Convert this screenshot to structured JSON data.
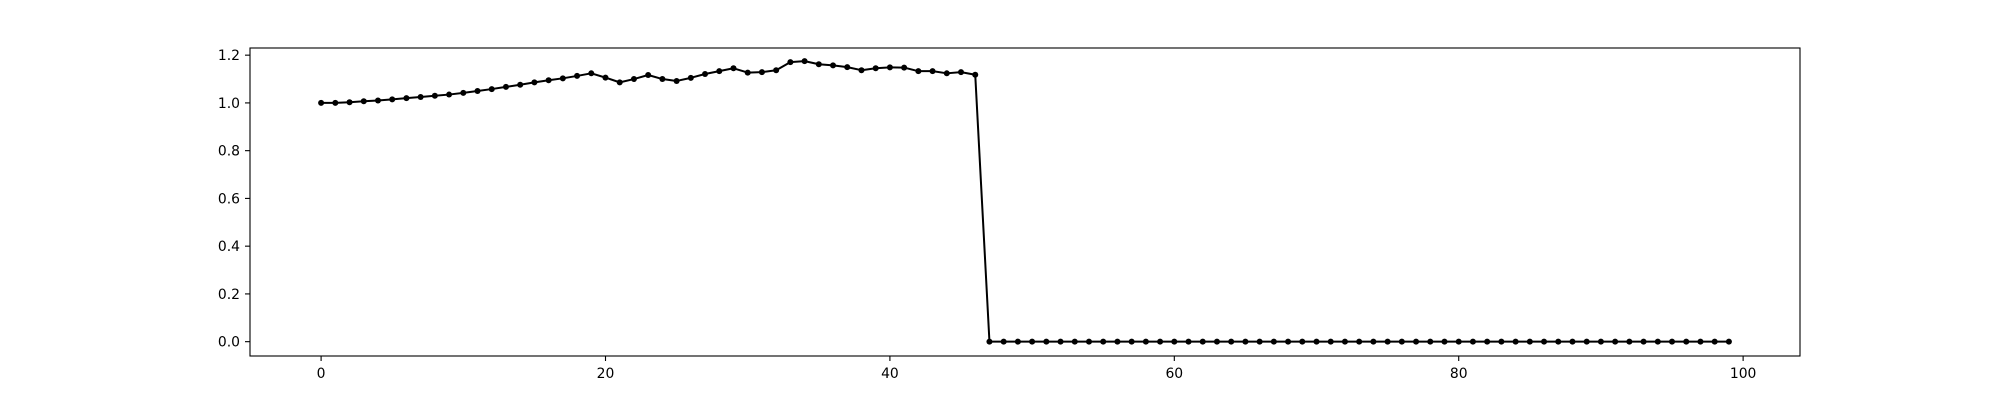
{
  "chart_data": {
    "type": "line",
    "title": "",
    "xlabel": "",
    "ylabel": "",
    "xlim": [
      -5,
      104
    ],
    "ylim": [
      -0.06,
      1.23
    ],
    "x_ticks": [
      0,
      20,
      40,
      60,
      80,
      100
    ],
    "x_tick_labels": [
      "0",
      "20",
      "40",
      "60",
      "80",
      "100"
    ],
    "y_ticks": [
      0.0,
      0.2,
      0.4,
      0.6,
      0.8,
      1.0,
      1.2
    ],
    "y_tick_labels": [
      "0.0",
      "0.2",
      "0.4",
      "0.6",
      "0.8",
      "1.0",
      "1.2"
    ],
    "grid": false,
    "legend": "none",
    "line_color": "#000000",
    "marker": "circle",
    "series": [
      {
        "x": [
          0,
          1,
          2,
          3,
          4,
          5,
          6,
          7,
          8,
          9,
          10,
          11,
          12,
          13,
          14,
          15,
          16,
          17,
          18,
          19,
          20,
          21,
          22,
          23,
          24,
          25,
          26,
          27,
          28,
          29,
          30,
          31,
          32,
          33,
          34,
          35,
          36,
          37,
          38,
          39,
          40,
          41,
          42,
          43,
          44,
          45,
          46,
          47,
          48,
          49,
          50,
          51,
          52,
          53,
          54,
          55,
          56,
          57,
          58,
          59,
          60,
          61,
          62,
          63,
          64,
          65,
          66,
          67,
          68,
          69,
          70,
          71,
          72,
          73,
          74,
          75,
          76,
          77,
          78,
          79,
          80,
          81,
          82,
          83,
          84,
          85,
          86,
          87,
          88,
          89,
          90,
          91,
          92,
          93,
          94,
          95,
          96,
          97,
          98,
          99
        ],
        "values": [
          1.0,
          1.0,
          1.003,
          1.007,
          1.01,
          1.015,
          1.02,
          1.025,
          1.03,
          1.035,
          1.042,
          1.05,
          1.058,
          1.067,
          1.076,
          1.086,
          1.095,
          1.103,
          1.113,
          1.124,
          1.106,
          1.086,
          1.1,
          1.117,
          1.1,
          1.092,
          1.105,
          1.121,
          1.133,
          1.145,
          1.127,
          1.129,
          1.137,
          1.171,
          1.175,
          1.162,
          1.157,
          1.15,
          1.137,
          1.145,
          1.149,
          1.148,
          1.133,
          1.133,
          1.124,
          1.129,
          1.118,
          0.0,
          0.0,
          0.0,
          0.0,
          0.0,
          0.0,
          0.0,
          0.0,
          0.0,
          0.0,
          0.0,
          0.0,
          0.0,
          0.0,
          0.0,
          0.0,
          0.0,
          0.0,
          0.0,
          0.0,
          0.0,
          0.0,
          0.0,
          0.0,
          0.0,
          0.0,
          0.0,
          0.0,
          0.0,
          0.0,
          0.0,
          0.0,
          0.0,
          0.0,
          0.0,
          0.0,
          0.0,
          0.0,
          0.0,
          0.0,
          0.0,
          0.0,
          0.0,
          0.0,
          0.0,
          0.0,
          0.0,
          0.0,
          0.0,
          0.0,
          0.0,
          0.0,
          0.0
        ]
      }
    ]
  }
}
